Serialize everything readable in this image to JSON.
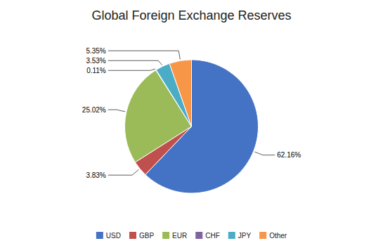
{
  "chart_data": {
    "type": "pie",
    "title": "Global Foreign Exchange Reserves",
    "categories": [
      "USD",
      "GBP",
      "EUR",
      "CHF",
      "JPY",
      "Other"
    ],
    "values": [
      62.16,
      3.83,
      25.02,
      0.11,
      3.53,
      5.35
    ],
    "value_labels": [
      "62.16%",
      "3.83%",
      "25.02%",
      "0.11%",
      "3.53%",
      "5.35%"
    ],
    "colors": [
      "#4472C4",
      "#C0504D",
      "#9BBB59",
      "#8064A2",
      "#4BACC6",
      "#F79646"
    ],
    "data_labels": true,
    "legend": "bottom"
  }
}
